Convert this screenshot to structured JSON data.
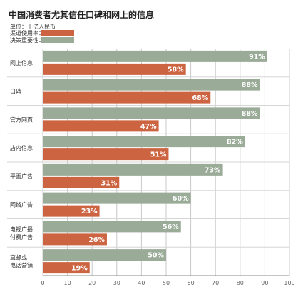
{
  "chart_data": {
    "type": "bar",
    "orientation": "horizontal",
    "title": "中国消费者尤其信任口碑和网上的信息",
    "unit_label": "单位：十亿人民币",
    "categories": [
      [
        "网上信息"
      ],
      [
        "口碑"
      ],
      [
        "官方网页"
      ],
      [
        "店内信息"
      ],
      [
        "平面广告"
      ],
      [
        "网络广告"
      ],
      [
        "电视广播",
        "付费广告"
      ],
      [
        "直邮或",
        "电话营销"
      ]
    ],
    "series": [
      {
        "name": "决策重要性",
        "color": "#9aab98",
        "values": [
          91,
          88,
          88,
          82,
          73,
          60,
          56,
          50
        ],
        "labels": [
          "91%",
          "88%",
          "88%",
          "82%",
          "73%",
          "60%",
          "56%",
          "50%"
        ]
      },
      {
        "name": "渠道使用率",
        "color": "#cc6442",
        "values": [
          58,
          68,
          47,
          51,
          31,
          23,
          26,
          19
        ],
        "labels": [
          "58%",
          "68%",
          "47%",
          "51%",
          "31%",
          "23%",
          "26%",
          "19%"
        ]
      }
    ],
    "legend": [
      {
        "name": "渠道使用率：",
        "color": "#cc6442"
      },
      {
        "name": "决策重要性：",
        "color": "#9aab98"
      }
    ],
    "xlim": [
      0,
      100
    ],
    "x_ticks": [
      0,
      10,
      20,
      30,
      40,
      50,
      60,
      70,
      80,
      90,
      100
    ],
    "grid": true,
    "legend_position": "top-left"
  }
}
